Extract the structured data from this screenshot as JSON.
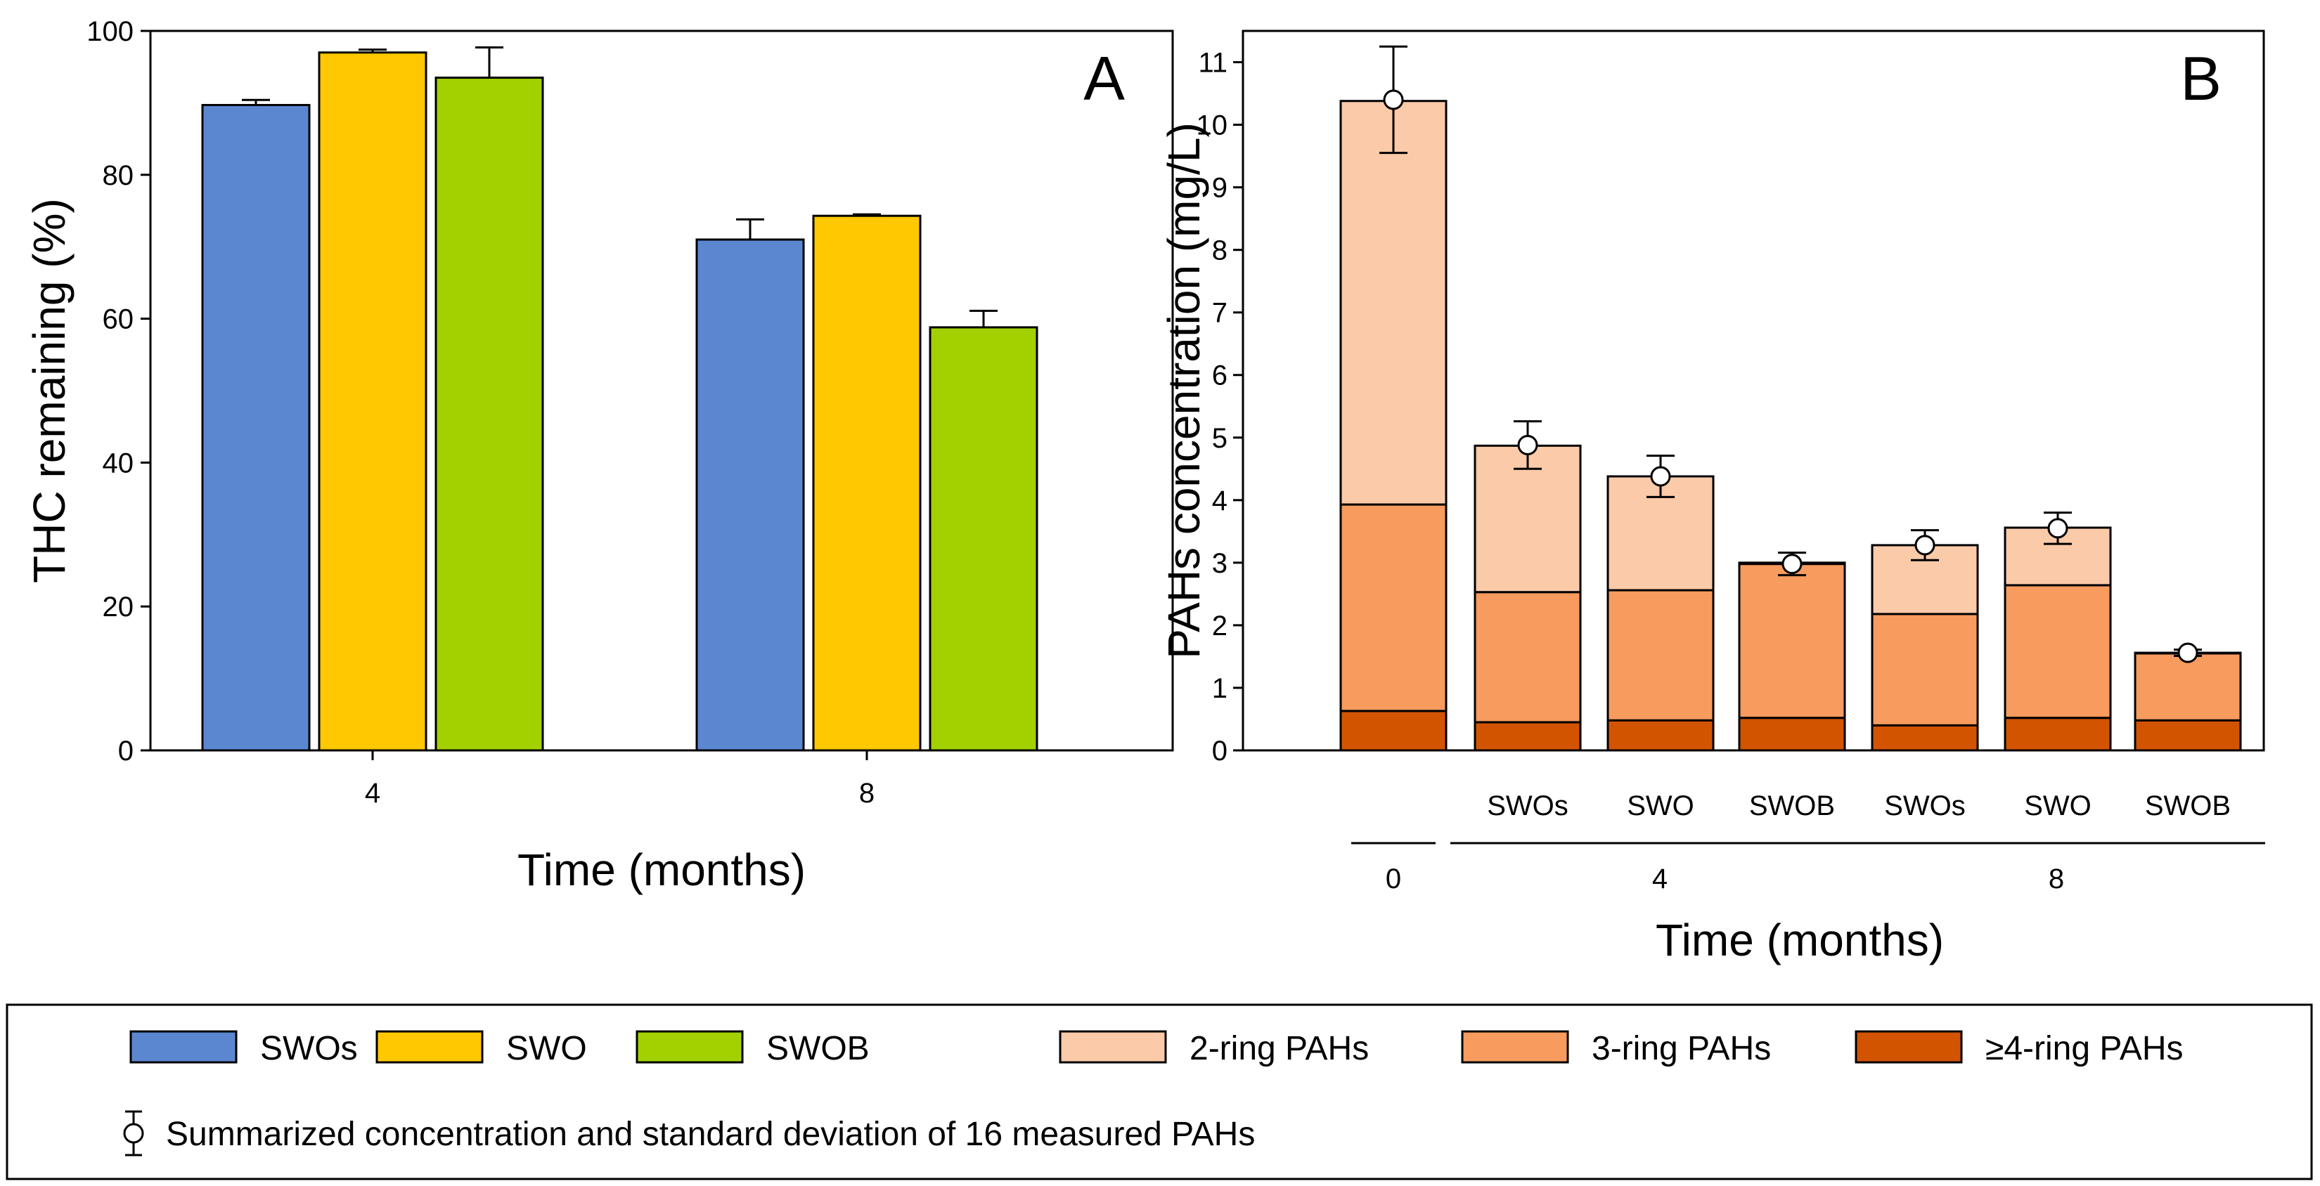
{
  "chart_data": [
    {
      "type": "bar",
      "panel_label": "A",
      "categories": [
        "4",
        "8"
      ],
      "series": [
        {
          "name": "SWOs",
          "color": "#5b87d1",
          "values": [
            89.7,
            71.0
          ],
          "errors": [
            0.7,
            2.8
          ]
        },
        {
          "name": "SWO",
          "color": "#ffc800",
          "values": [
            97.0,
            74.3
          ],
          "errors": [
            0.4,
            0.2
          ]
        },
        {
          "name": "SWOB",
          "color": "#a3d100",
          "values": [
            93.5,
            58.8
          ],
          "errors": [
            4.2,
            2.3
          ]
        }
      ],
      "xlabel": "Time (months)",
      "ylabel": "THC remaining (%)",
      "ylim": [
        0,
        100
      ],
      "yticks": [
        "0",
        "20",
        "40",
        "60",
        "80",
        "100"
      ],
      "grid": false
    },
    {
      "type": "bar",
      "stacked": true,
      "panel_label": "B",
      "categories": [
        "",
        "SWOs",
        "SWO",
        "SWOB",
        "SWOs",
        "SWO",
        "SWOB"
      ],
      "groups": [
        {
          "label": "0",
          "from": 0,
          "to": 0
        },
        {
          "label": "4",
          "from": 1,
          "to": 3
        },
        {
          "label": "8",
          "from": 4,
          "to": 6
        }
      ],
      "series": [
        {
          "name": "≥4-ring PAHs",
          "color": "#d35400",
          "values": [
            0.63,
            0.45,
            0.48,
            0.52,
            0.4,
            0.52,
            0.48
          ]
        },
        {
          "name": "3-ring PAHs",
          "color": "#f79b5e",
          "values": [
            3.3,
            2.08,
            2.08,
            2.46,
            1.78,
            2.12,
            1.07
          ]
        },
        {
          "name": "2-ring PAHs",
          "color": "#fbcaa8",
          "values": [
            6.45,
            2.34,
            1.82,
            0.02,
            1.1,
            0.92,
            0.01
          ]
        }
      ],
      "summary": {
        "name": "Summarized concentration and standard deviation of 16 measured PAHs",
        "values": [
          10.4,
          4.88,
          4.38,
          2.98,
          3.28,
          3.55,
          1.56
        ],
        "errors": [
          0.85,
          0.38,
          0.33,
          0.18,
          0.24,
          0.25,
          0.05
        ]
      },
      "xlabel": "Time (months)",
      "ylabel": "PAHs concentration (mg/L)",
      "ylim": [
        0,
        11.5
      ],
      "yticks": [
        "0",
        "1",
        "2",
        "3",
        "4",
        "5",
        "6",
        "7",
        "8",
        "9",
        "10",
        "11"
      ],
      "grid": false
    }
  ],
  "legend": {
    "items": [
      {
        "label": "SWOs",
        "color": "#5b87d1"
      },
      {
        "label": "SWO",
        "color": "#ffc800"
      },
      {
        "label": "SWOB",
        "color": "#a3d100"
      },
      {
        "label": "2-ring PAHs",
        "color": "#fbcaa8"
      },
      {
        "label": "3-ring PAHs",
        "color": "#f79b5e"
      },
      {
        "label": "≥4-ring PAHs",
        "color": "#d35400"
      }
    ],
    "summary_label": "Summarized concentration and standard deviation of 16 measured PAHs"
  }
}
